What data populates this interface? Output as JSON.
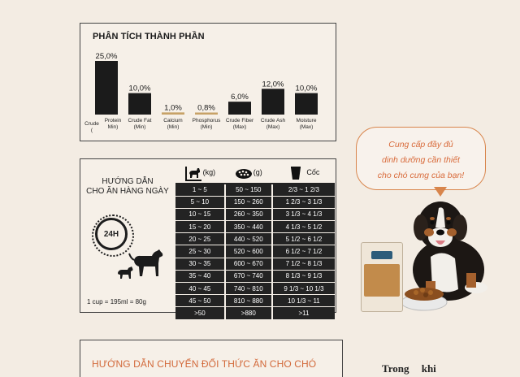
{
  "analysis": {
    "title": "PHÂN TÍCH THÀNH PHẦN"
  },
  "chart_data": {
    "type": "bar",
    "title": "PHÂN TÍCH THÀNH PHẦN",
    "categories": [
      [
        "Crude",
        "(",
        "Protein",
        "Min)"
      ],
      [
        "Crude Fat",
        "(Min)"
      ],
      [
        "Calcium",
        "(Min)"
      ],
      [
        "Phosphorus",
        "(Min)"
      ],
      [
        "Crude Fiber",
        "(Max)"
      ],
      [
        "Crude Ash",
        "(Max)"
      ],
      [
        "Moisture",
        "(Max)"
      ]
    ],
    "values": [
      25.0,
      10.0,
      1.0,
      0.8,
      6.0,
      12.0,
      10.0
    ],
    "value_labels": [
      "25,0%",
      "10,0%",
      "1,0%",
      "0,8%",
      "6,0%",
      "12,0%",
      "10,0%"
    ],
    "ylim": [
      0,
      25
    ],
    "grid": false,
    "bar_color": "#1b1b1b",
    "accent_color": "#c7a267"
  },
  "feeding": {
    "title_line1": "HƯỚNG DẪN",
    "title_line2": "CHO ĂN HÀNG NGÀY",
    "clock_label": "24H",
    "cup_note": "1 cup = 195ml = 80g",
    "header": {
      "weight_unit": "(kg)",
      "food_unit": "(g)",
      "cup_unit": "Cốc"
    },
    "rows": [
      [
        "1 ~ 5",
        "50 ~ 150",
        "2/3 ~ 1 2/3"
      ],
      [
        "5 ~ 10",
        "150 ~ 260",
        "1 2/3 ~ 3 1/3"
      ],
      [
        "10 ~ 15",
        "260 ~ 350",
        "3 1/3 ~ 4 1/3"
      ],
      [
        "15 ~ 20",
        "350 ~ 440",
        "4 1/3 ~ 5 1/2"
      ],
      [
        "20 ~ 25",
        "440 ~ 520",
        "5 1/2 ~ 6 1/2"
      ],
      [
        "25 ~ 30",
        "520 ~ 600",
        "6 1/2 ~ 7 1/2"
      ],
      [
        "30 ~ 35",
        "600 ~ 670",
        "7 1/2 ~ 8 1/3"
      ],
      [
        "35 ~ 40",
        "670 ~ 740",
        "8 1/3 ~ 9 1/3"
      ],
      [
        "40 ~ 45",
        "740 ~ 810",
        "9 1/3 ~ 10 1/3"
      ],
      [
        "45 ~ 50",
        "810 ~ 880",
        "10 1/3 ~ 11"
      ],
      [
        ">50",
        ">880",
        ">11"
      ]
    ]
  },
  "bubble": {
    "line1": "Cung cấp đầy đủ",
    "line2": "dinh dưỡng cần thiết",
    "line3": "cho chó cưng của bạn!"
  },
  "bottom": {
    "title": "HƯỚNG DẪN CHUYỂN ĐỔI THỨC ĂN CHO CHÓ",
    "side_text": "Trong khi"
  },
  "colors": {
    "background": "#f3ece3",
    "dark": "#232323",
    "orange_text": "#d86a3a",
    "bubble_border": "#d8854c"
  }
}
